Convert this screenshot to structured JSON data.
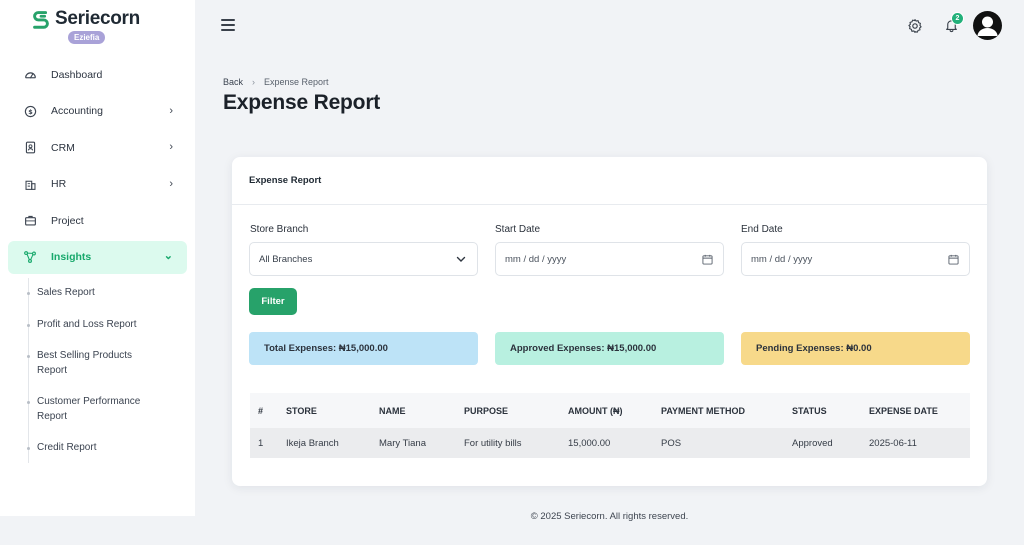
{
  "brand": {
    "name": "Seriecorn",
    "tag": "Eziefia"
  },
  "sidebar": {
    "items": [
      {
        "label": "Dashboard",
        "icon": "gauge-icon"
      },
      {
        "label": "Accounting",
        "icon": "dollar-icon"
      },
      {
        "label": "CRM",
        "icon": "contact-book-icon"
      },
      {
        "label": "HR",
        "icon": "building-icon"
      },
      {
        "label": "Project",
        "icon": "briefcase-icon"
      },
      {
        "label": "Insights",
        "icon": "insights-icon"
      }
    ],
    "sub_items": [
      {
        "label": "Sales Report"
      },
      {
        "label": "Profit and Loss Report"
      },
      {
        "label": "Best Selling Products Report"
      },
      {
        "label": "Customer Performance Report"
      },
      {
        "label": "Credit Report"
      }
    ]
  },
  "topbar": {
    "notification_count": "2"
  },
  "breadcrumb": {
    "back": "Back",
    "current": "Expense Report"
  },
  "page": {
    "title": "Expense Report"
  },
  "card": {
    "title": "Expense Report",
    "filters": {
      "branch_label": "Store Branch",
      "branch_value": "All Branches",
      "start_label": "Start Date",
      "start_placeholder": "mm / dd / yyyy",
      "end_label": "End Date",
      "end_placeholder": "mm / dd / yyyy",
      "filter_button": "Filter"
    },
    "stats": {
      "total": "Total Expenses: ₦15,000.00",
      "approved": "Approved Expenses: ₦15,000.00",
      "pending": "Pending Expenses: ₦0.00"
    },
    "table": {
      "headers": [
        "#",
        "STORE",
        "NAME",
        "PURPOSE",
        "AMOUNT (₦)",
        "PAYMENT METHOD",
        "STATUS",
        "EXPENSE DATE"
      ],
      "rows": [
        [
          "1",
          "Ikeja Branch",
          "Mary Tiana",
          "For utility bills",
          "15,000.00",
          "POS",
          "Approved",
          "2025-06-11"
        ]
      ]
    }
  },
  "colors": {
    "accent": "#27a26a",
    "active_nav_bg": "#dcfaee",
    "total_bg": "#bde3f7",
    "approved_bg": "#b8f0e0",
    "pending_bg": "#f7d98a"
  },
  "footer": "© 2025 Seriecorn. All rights reserved."
}
